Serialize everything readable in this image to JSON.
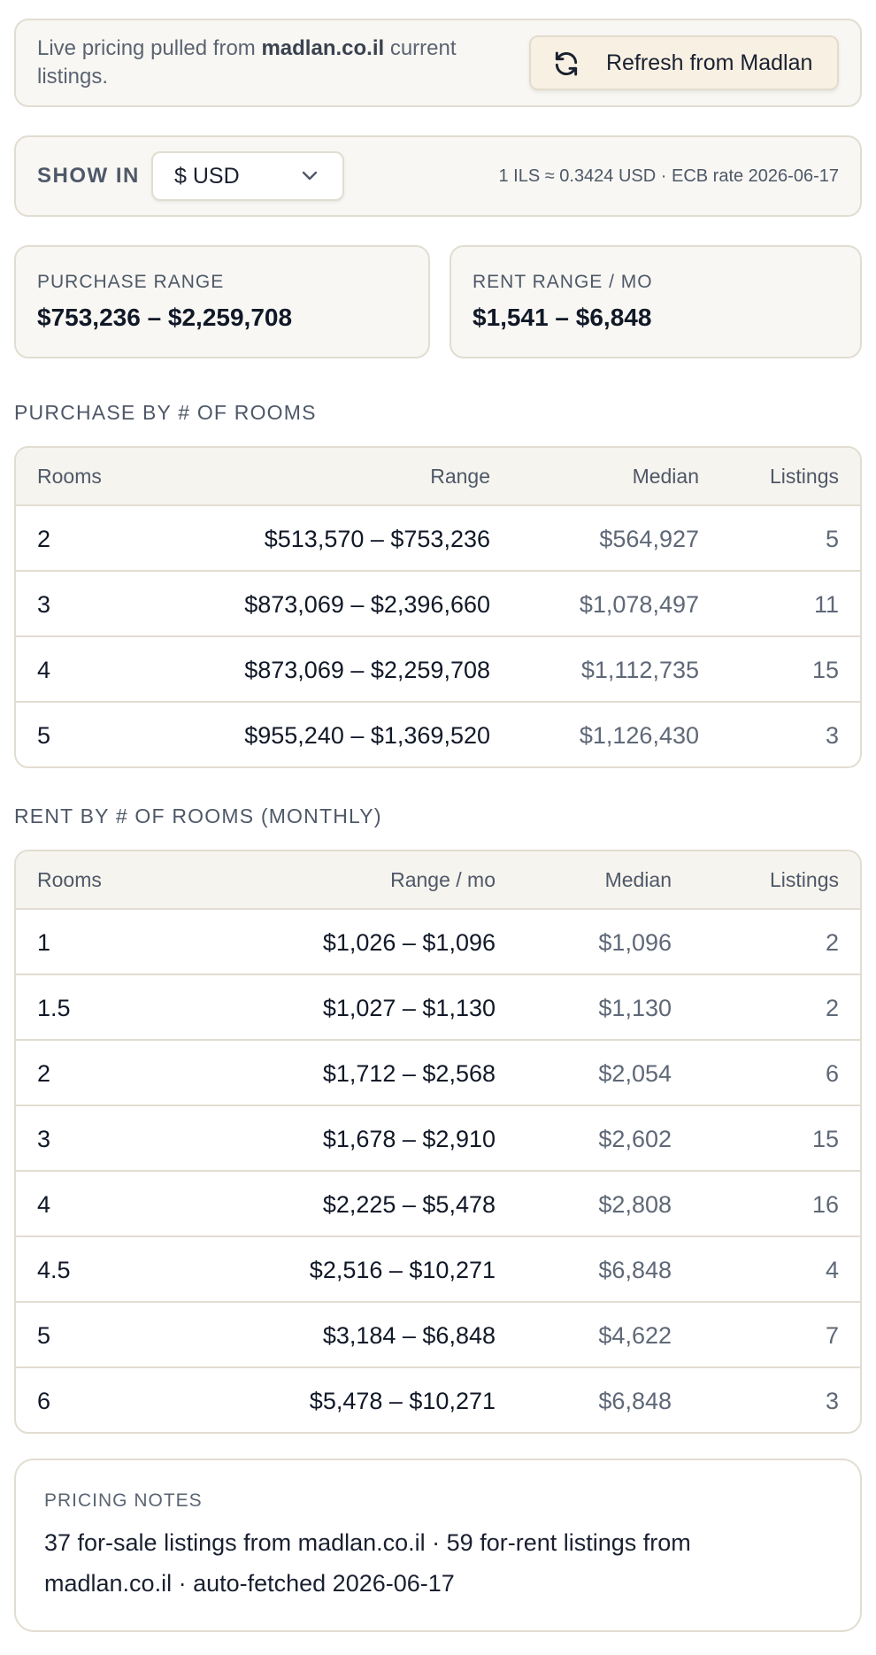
{
  "banner": {
    "text_prefix": "Live pricing pulled from ",
    "source": "madlan.co.il",
    "text_suffix": " current listings.",
    "refresh_label": "Refresh from Madlan"
  },
  "currency": {
    "show_in_label": "SHOW IN",
    "selected": "$ USD",
    "rate_text": "1 ILS ≈ 0.3424 USD · ECB rate 2026-06-17"
  },
  "summary": {
    "purchase_label": "PURCHASE RANGE",
    "purchase_value": "$753,236 – $2,259,708",
    "rent_label": "RENT RANGE / MO",
    "rent_value": "$1,541 – $6,848"
  },
  "purchase_table": {
    "title": "PURCHASE BY # OF ROOMS",
    "headers": {
      "rooms": "Rooms",
      "range": "Range",
      "median": "Median",
      "listings": "Listings"
    },
    "rows": [
      {
        "rooms": "2",
        "range": "$513,570 – $753,236",
        "median": "$564,927",
        "listings": "5"
      },
      {
        "rooms": "3",
        "range": "$873,069 – $2,396,660",
        "median": "$1,078,497",
        "listings": "11"
      },
      {
        "rooms": "4",
        "range": "$873,069 – $2,259,708",
        "median": "$1,112,735",
        "listings": "15"
      },
      {
        "rooms": "5",
        "range": "$955,240 – $1,369,520",
        "median": "$1,126,430",
        "listings": "3"
      }
    ]
  },
  "rent_table": {
    "title": "RENT BY # OF ROOMS (MONTHLY)",
    "headers": {
      "rooms": "Rooms",
      "range": "Range / mo",
      "median": "Median",
      "listings": "Listings"
    },
    "rows": [
      {
        "rooms": "1",
        "range": "$1,026 – $1,096",
        "median": "$1,096",
        "listings": "2"
      },
      {
        "rooms": "1.5",
        "range": "$1,027 – $1,130",
        "median": "$1,130",
        "listings": "2"
      },
      {
        "rooms": "2",
        "range": "$1,712 – $2,568",
        "median": "$2,054",
        "listings": "6"
      },
      {
        "rooms": "3",
        "range": "$1,678 – $2,910",
        "median": "$2,602",
        "listings": "15"
      },
      {
        "rooms": "4",
        "range": "$2,225 – $5,478",
        "median": "$2,808",
        "listings": "16"
      },
      {
        "rooms": "4.5",
        "range": "$2,516 – $10,271",
        "median": "$6,848",
        "listings": "4"
      },
      {
        "rooms": "5",
        "range": "$3,184 – $6,848",
        "median": "$4,622",
        "listings": "7"
      },
      {
        "rooms": "6",
        "range": "$5,478 – $10,271",
        "median": "$6,848",
        "listings": "3"
      }
    ]
  },
  "notes": {
    "label": "PRICING NOTES",
    "text": "37 for-sale listings from madlan.co.il · 59 for-rent listings from madlan.co.il · auto-fetched 2026-06-17"
  },
  "icons": {
    "refresh": "refresh-icon",
    "dropdown": "chevron-down-icon"
  }
}
